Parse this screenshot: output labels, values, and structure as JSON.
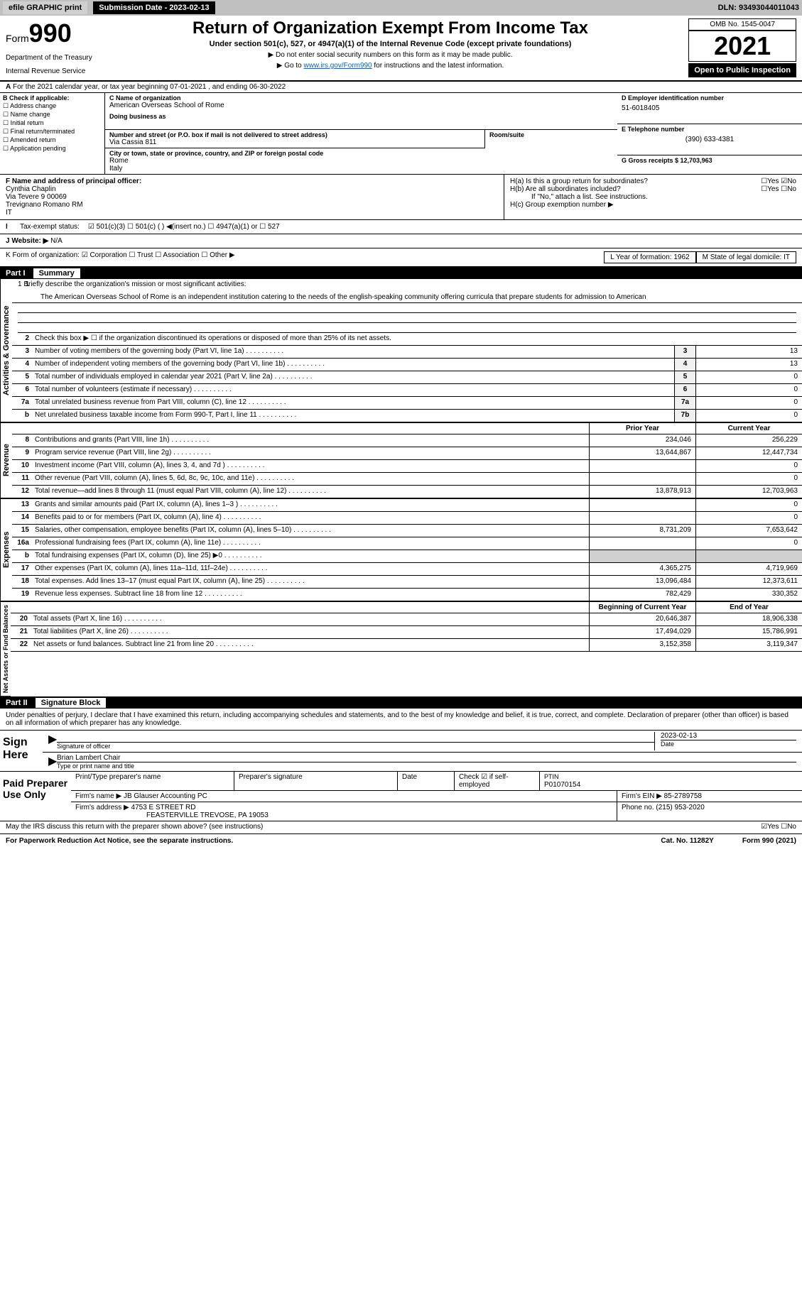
{
  "topbar": {
    "efile": "efile GRAPHIC print",
    "submission": "Submission Date - 2023-02-13",
    "dln_label": "DLN: 93493044011043"
  },
  "header": {
    "form_prefix": "Form",
    "form_num": "990",
    "dept": "Department of the Treasury",
    "irs": "Internal Revenue Service",
    "title": "Return of Organization Exempt From Income Tax",
    "subtitle": "Under section 501(c), 527, or 4947(a)(1) of the Internal Revenue Code (except private foundations)",
    "note1": "▶ Do not enter social security numbers on this form as it may be made public.",
    "note2_pre": "▶ Go to ",
    "note2_link": "www.irs.gov/Form990",
    "note2_post": " for instructions and the latest information.",
    "omb": "OMB No. 1545-0047",
    "year": "2021",
    "open_public": "Open to Public Inspection"
  },
  "row_a": "For the 2021 calendar year, or tax year beginning 07-01-2021   , and ending 06-30-2022",
  "col_b": {
    "label": "B Check if applicable:",
    "items": [
      "☐ Address change",
      "☐ Name change",
      "☐ Initial return",
      "☐ Final return/terminated",
      "☐ Amended return",
      "☐ Application pending"
    ]
  },
  "col_c": {
    "name_label": "C Name of organization",
    "name": "American Overseas School of Rome",
    "dba_label": "Doing business as",
    "dba": "",
    "addr_label": "Number and street (or P.O. box if mail is not delivered to street address)",
    "addr": "Via Cassia 811",
    "room_label": "Room/suite",
    "city_label": "City or town, state or province, country, and ZIP or foreign postal code",
    "city": "Rome\nItaly"
  },
  "col_de": {
    "d_label": "D Employer identification number",
    "d_val": "51-6018405",
    "e_label": "E Telephone number",
    "e_val": "(390) 633-4381",
    "g_label": "G Gross receipts $ 12,703,963"
  },
  "row_f": {
    "label": "F  Name and address of principal officer:",
    "name": "Cynthia Chaplin",
    "addr1": "Via Tevere 9 00069",
    "addr2": "Trevignano Romano RM",
    "addr3": "IT"
  },
  "row_h": {
    "ha": "H(a)  Is this a group return for subordinates?",
    "ha_ans": "☐Yes ☑No",
    "hb": "H(b)  Are all subordinates included?",
    "hb_ans": "☐Yes ☐No",
    "hb_note": "If \"No,\" attach a list. See instructions.",
    "hc": "H(c)  Group exemption number ▶"
  },
  "row_i": {
    "label": "Tax-exempt status:",
    "opts": "☑ 501(c)(3)   ☐ 501(c) (  ) ◀(insert no.)   ☐ 4947(a)(1) or  ☐ 527"
  },
  "row_j": {
    "label": "J Website: ▶",
    "val": "N/A"
  },
  "row_k": {
    "label": "K Form of organization:  ☑ Corporation ☐ Trust ☐ Association ☐ Other ▶",
    "l": "L Year of formation: 1962",
    "m": "M State of legal domicile: IT"
  },
  "part1": {
    "header": "Part I",
    "name": "Summary"
  },
  "mission": {
    "label": "1  Briefly describe the organization's mission or most significant activities:",
    "text": "The American Overseas School of Rome is an independent institution catering to the needs of the english-speaking community offering curricula that prepare students for admission to American"
  },
  "line2": "Check this box ▶ ☐  if the organization discontinued its operations or disposed of more than 25% of its net assets.",
  "lines_ag": [
    {
      "num": "3",
      "text": "Number of voting members of the governing body (Part VI, line 1a)",
      "box": "3",
      "val": "13"
    },
    {
      "num": "4",
      "text": "Number of independent voting members of the governing body (Part VI, line 1b)",
      "box": "4",
      "val": "13"
    },
    {
      "num": "5",
      "text": "Total number of individuals employed in calendar year 2021 (Part V, line 2a)",
      "box": "5",
      "val": "0"
    },
    {
      "num": "6",
      "text": "Total number of volunteers (estimate if necessary)",
      "box": "6",
      "val": "0"
    },
    {
      "num": "7a",
      "text": "Total unrelated business revenue from Part VIII, column (C), line 12",
      "box": "7a",
      "val": "0"
    },
    {
      "num": "b",
      "text": "Net unrelated business taxable income from Form 990-T, Part I, line 11",
      "box": "7b",
      "val": "0"
    }
  ],
  "col_headers": {
    "prior": "Prior Year",
    "current": "Current Year"
  },
  "revenue": [
    {
      "num": "8",
      "text": "Contributions and grants (Part VIII, line 1h)",
      "prior": "234,046",
      "curr": "256,229"
    },
    {
      "num": "9",
      "text": "Program service revenue (Part VIII, line 2g)",
      "prior": "13,644,867",
      "curr": "12,447,734"
    },
    {
      "num": "10",
      "text": "Investment income (Part VIII, column (A), lines 3, 4, and 7d )",
      "prior": "",
      "curr": "0"
    },
    {
      "num": "11",
      "text": "Other revenue (Part VIII, column (A), lines 5, 6d, 8c, 9c, 10c, and 11e)",
      "prior": "",
      "curr": "0"
    },
    {
      "num": "12",
      "text": "Total revenue—add lines 8 through 11 (must equal Part VIII, column (A), line 12)",
      "prior": "13,878,913",
      "curr": "12,703,963"
    }
  ],
  "expenses": [
    {
      "num": "13",
      "text": "Grants and similar amounts paid (Part IX, column (A), lines 1–3 )",
      "prior": "",
      "curr": "0"
    },
    {
      "num": "14",
      "text": "Benefits paid to or for members (Part IX, column (A), line 4)",
      "prior": "",
      "curr": "0"
    },
    {
      "num": "15",
      "text": "Salaries, other compensation, employee benefits (Part IX, column (A), lines 5–10)",
      "prior": "8,731,209",
      "curr": "7,653,642"
    },
    {
      "num": "16a",
      "text": "Professional fundraising fees (Part IX, column (A), line 11e)",
      "prior": "",
      "curr": "0"
    },
    {
      "num": "b",
      "text": "Total fundraising expenses (Part IX, column (D), line 25) ▶0",
      "prior": "gray",
      "curr": "gray"
    },
    {
      "num": "17",
      "text": "Other expenses (Part IX, column (A), lines 11a–11d, 11f–24e)",
      "prior": "4,365,275",
      "curr": "4,719,969"
    },
    {
      "num": "18",
      "text": "Total expenses. Add lines 13–17 (must equal Part IX, column (A), line 25)",
      "prior": "13,096,484",
      "curr": "12,373,611"
    },
    {
      "num": "19",
      "text": "Revenue less expenses. Subtract line 18 from line 12",
      "prior": "782,429",
      "curr": "330,352"
    }
  ],
  "col_headers2": {
    "begin": "Beginning of Current Year",
    "end": "End of Year"
  },
  "netassets": [
    {
      "num": "20",
      "text": "Total assets (Part X, line 16)",
      "prior": "20,646,387",
      "curr": "18,906,338"
    },
    {
      "num": "21",
      "text": "Total liabilities (Part X, line 26)",
      "prior": "17,494,029",
      "curr": "15,786,991"
    },
    {
      "num": "22",
      "text": "Net assets or fund balances. Subtract line 21 from line 20",
      "prior": "3,152,358",
      "curr": "3,119,347"
    }
  ],
  "part2": {
    "header": "Part II",
    "name": "Signature Block"
  },
  "sig_text": "Under penalties of perjury, I declare that I have examined this return, including accompanying schedules and statements, and to the best of my knowledge and belief, it is true, correct, and complete. Declaration of preparer (other than officer) is based on all information of which preparer has any knowledge.",
  "sign_here": "Sign Here",
  "sig_officer": "Signature of officer",
  "sig_date": "2023-02-13",
  "sig_date_label": "Date",
  "sig_name": "Brian Lambert  Chair",
  "sig_name_label": "Type or print name and title",
  "paid_prep": "Paid Preparer Use Only",
  "prep": {
    "name_label": "Print/Type preparer's name",
    "sig_label": "Preparer's signature",
    "date_label": "Date",
    "check_label": "Check ☑ if self-employed",
    "ptin_label": "PTIN",
    "ptin": "P01070154",
    "firm_label": "Firm's name   ▶",
    "firm": "JB Glauser Accounting PC",
    "ein_label": "Firm's EIN ▶",
    "ein": "85-2789758",
    "addr_label": "Firm's address ▶",
    "addr1": "4753 E STREET RD",
    "addr2": "FEASTERVILLE TREVOSE, PA  19053",
    "phone_label": "Phone no.",
    "phone": "(215) 953-2020"
  },
  "discuss": "May the IRS discuss this return with the preparer shown above? (see instructions)",
  "discuss_ans": "☑Yes ☐No",
  "footer": {
    "pra": "For Paperwork Reduction Act Notice, see the separate instructions.",
    "cat": "Cat. No. 11282Y",
    "form": "Form 990 (2021)"
  },
  "vlabels": {
    "ag": "Activities & Governance",
    "rev": "Revenue",
    "exp": "Expenses",
    "na": "Net Assets or Fund Balances"
  }
}
